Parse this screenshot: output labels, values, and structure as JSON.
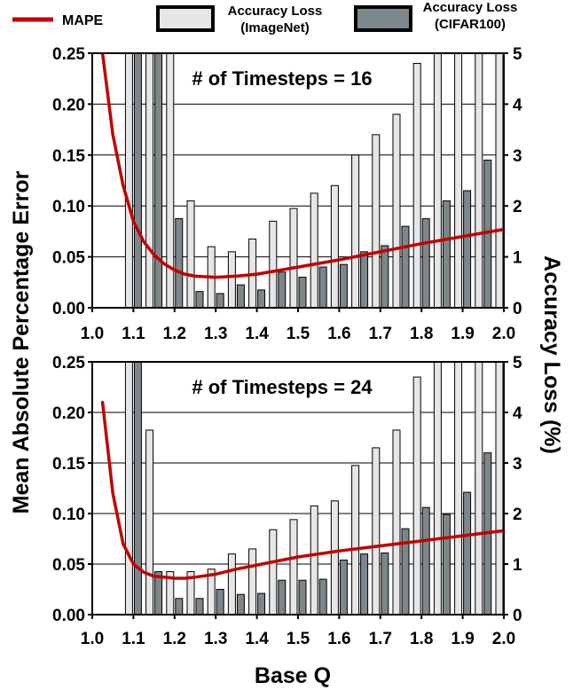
{
  "legend": {
    "mape": "MAPE",
    "imagenet": [
      "Accuracy Loss",
      "(ImageNet)"
    ],
    "cifar": [
      "Accuracy Loss",
      "(CIFAR100)"
    ]
  },
  "colors": {
    "mape": "#c00000",
    "imagenet": "#e6e6e6",
    "cifar": "#7d868a",
    "bar_stroke": "#000000"
  },
  "axes": {
    "ylabel_left": "Mean Absolute Percentage Error",
    "ylabel_right": "Accuracy Loss (%)",
    "xlabel": "Base Q"
  },
  "chart_data": [
    {
      "type": "bar",
      "annotation": "# of Timesteps = 16",
      "xlim": [
        1.0,
        2.0
      ],
      "ylim_left": [
        0,
        0.25
      ],
      "ylim_right": [
        0,
        5
      ],
      "x_ticks": [
        "1.0",
        "1.1",
        "1.2",
        "1.3",
        "1.4",
        "1.5",
        "1.6",
        "1.7",
        "1.8",
        "1.9",
        "2.0"
      ],
      "y_ticks_left": [
        "0.00",
        "0.05",
        "0.10",
        "0.15",
        "0.20",
        "0.25"
      ],
      "y_ticks_right": [
        "0",
        "1",
        "2",
        "3",
        "4",
        "5"
      ],
      "categories": [
        1.1,
        1.15,
        1.2,
        1.25,
        1.3,
        1.35,
        1.4,
        1.45,
        1.5,
        1.55,
        1.6,
        1.65,
        1.7,
        1.75,
        1.8,
        1.85,
        1.9,
        1.95,
        2.0
      ],
      "series": [
        {
          "name": "Accuracy Loss (ImageNet)",
          "axis": "right",
          "values": [
            5,
            5,
            5,
            2.1,
            1.2,
            1.1,
            1.35,
            1.7,
            1.95,
            2.25,
            2.4,
            3.0,
            3.4,
            3.8,
            4.8,
            5,
            5,
            5,
            5
          ]
        },
        {
          "name": "Accuracy Loss (CIFAR100)",
          "axis": "right",
          "values": [
            5,
            5,
            1.75,
            0.32,
            0.28,
            0.45,
            0.35,
            0.7,
            0.6,
            0.8,
            0.85,
            1.1,
            1.22,
            1.6,
            1.75,
            2.1,
            2.3,
            2.9,
            3.7
          ]
        },
        {
          "name": "MAPE",
          "type": "line",
          "axis": "left",
          "x": [
            1.025,
            1.05,
            1.075,
            1.1,
            1.125,
            1.15,
            1.175,
            1.2,
            1.225,
            1.25,
            1.3,
            1.35,
            1.4,
            1.5,
            1.6,
            1.7,
            1.8,
            1.9,
            2.0
          ],
          "y": [
            0.25,
            0.17,
            0.12,
            0.085,
            0.065,
            0.052,
            0.043,
            0.037,
            0.033,
            0.031,
            0.03,
            0.031,
            0.033,
            0.04,
            0.047,
            0.055,
            0.063,
            0.07,
            0.077
          ]
        }
      ]
    },
    {
      "type": "bar",
      "annotation": "# of Timesteps = 24",
      "xlim": [
        1.0,
        2.0
      ],
      "ylim_left": [
        0,
        0.25
      ],
      "ylim_right": [
        0,
        5
      ],
      "x_ticks": [
        "1.0",
        "1.1",
        "1.2",
        "1.3",
        "1.4",
        "1.5",
        "1.6",
        "1.7",
        "1.8",
        "1.9",
        "2.0"
      ],
      "y_ticks_left": [
        "0.00",
        "0.05",
        "0.10",
        "0.15",
        "0.20",
        "0.25"
      ],
      "y_ticks_right": [
        "0",
        "1",
        "2",
        "3",
        "4",
        "5"
      ],
      "categories": [
        1.1,
        1.15,
        1.2,
        1.25,
        1.3,
        1.35,
        1.4,
        1.45,
        1.5,
        1.55,
        1.6,
        1.65,
        1.7,
        1.75,
        1.8,
        1.85,
        1.9,
        1.95,
        2.0
      ],
      "series": [
        {
          "name": "Accuracy Loss (ImageNet)",
          "axis": "right",
          "values": [
            5,
            3.65,
            0.85,
            0.85,
            0.9,
            1.2,
            1.3,
            1.68,
            1.88,
            2.15,
            2.25,
            2.95,
            3.3,
            3.65,
            4.7,
            5,
            5,
            5,
            5
          ]
        },
        {
          "name": "Accuracy Loss (CIFAR100)",
          "axis": "right",
          "values": [
            5,
            0.85,
            0.32,
            0.32,
            0.5,
            0.4,
            0.42,
            0.68,
            0.68,
            0.7,
            1.08,
            1.2,
            1.22,
            1.7,
            2.12,
            1.98,
            2.42,
            3.2,
            3.6
          ]
        },
        {
          "name": "MAPE",
          "type": "line",
          "axis": "left",
          "x": [
            1.025,
            1.05,
            1.075,
            1.1,
            1.125,
            1.15,
            1.175,
            1.2,
            1.225,
            1.25,
            1.3,
            1.35,
            1.4,
            1.5,
            1.6,
            1.7,
            1.8,
            1.9,
            2.0
          ],
          "y": [
            0.21,
            0.12,
            0.07,
            0.05,
            0.042,
            0.038,
            0.037,
            0.036,
            0.036,
            0.037,
            0.04,
            0.045,
            0.049,
            0.057,
            0.063,
            0.068,
            0.073,
            0.078,
            0.083
          ]
        }
      ]
    }
  ]
}
